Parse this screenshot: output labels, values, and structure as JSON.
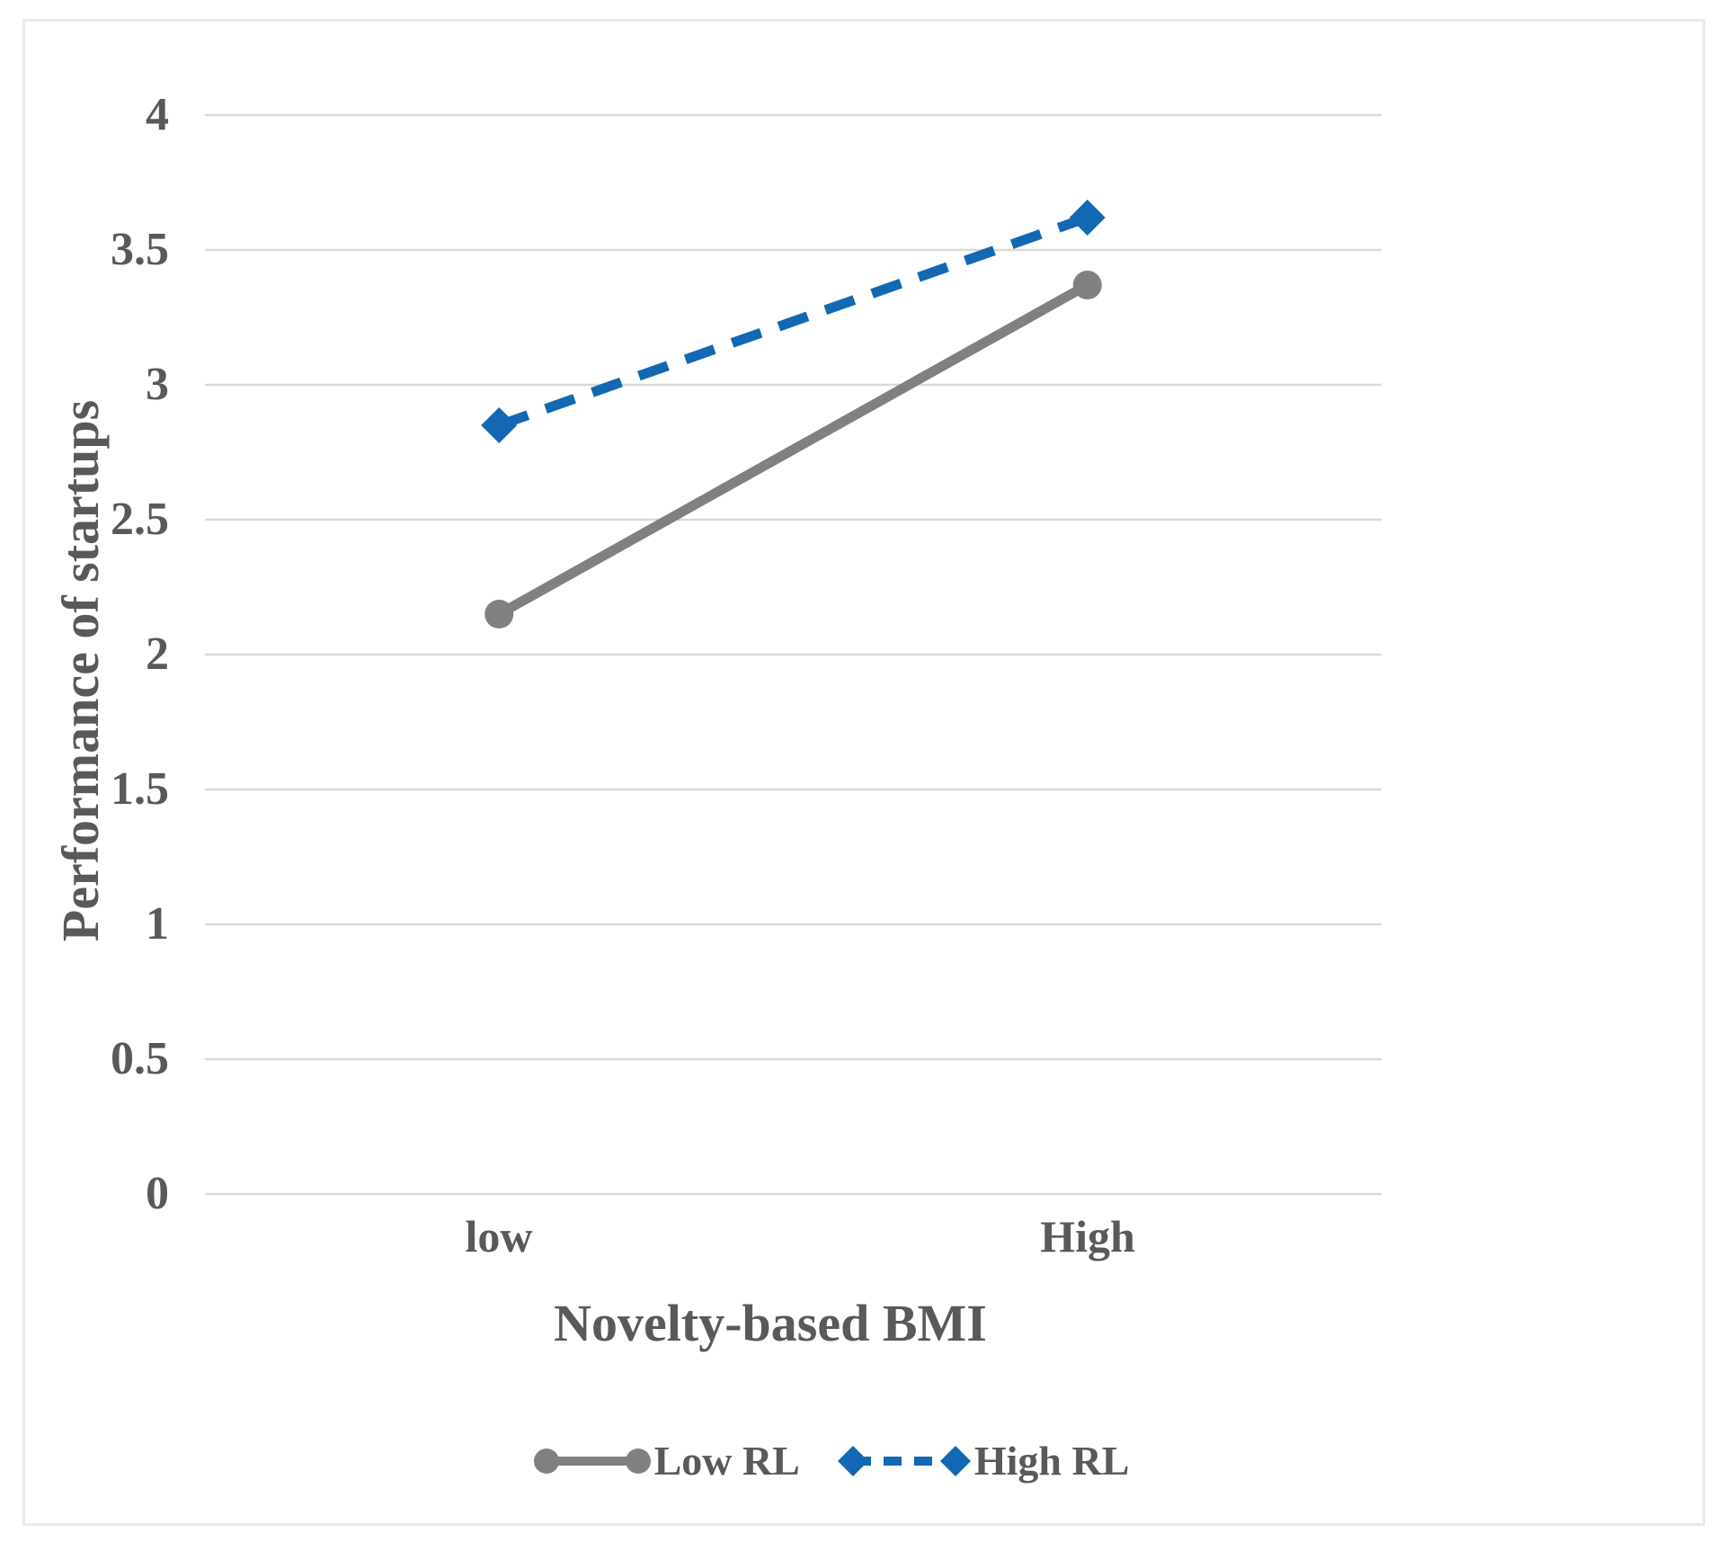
{
  "chart_data": {
    "type": "line",
    "categories": [
      "low",
      "High"
    ],
    "series": [
      {
        "name": "Low RL",
        "values": [
          2.15,
          3.37
        ],
        "color": "#808080",
        "style": "solid",
        "marker": "circle"
      },
      {
        "name": "High RL",
        "values": [
          2.85,
          3.62
        ],
        "color": "#1268b2",
        "style": "dashed",
        "marker": "diamond"
      }
    ],
    "xlabel": "Novelty-based BMI",
    "ylabel": "Performance of startups",
    "ylim": [
      0,
      4
    ],
    "ytick_step": 0.5,
    "yticks": [
      "4",
      "3.5",
      "3",
      "2.5",
      "2",
      "1.5",
      "1",
      "0.5",
      "0"
    ],
    "grid": true,
    "legend_position": "bottom",
    "text_color": "#595959",
    "gridline_color": "#d9d9d9",
    "background_color": "#ffffff",
    "frame_border_color": "#e9e9e9"
  }
}
